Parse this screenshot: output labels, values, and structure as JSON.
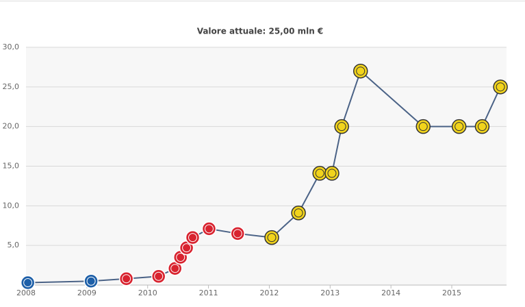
{
  "chart_data": {
    "type": "line",
    "title": "Valore attuale: 25,00 mln €",
    "x": [
      2008.03,
      2009.07,
      2009.65,
      2010.18,
      2010.45,
      2010.54,
      2010.64,
      2010.74,
      2011.01,
      2011.48,
      2012.04,
      2012.48,
      2012.83,
      2013.03,
      2013.19,
      2013.5,
      2014.53,
      2015.12,
      2015.5,
      2015.8
    ],
    "series": [
      {
        "color": "#4a6286",
        "values": [
          0.3,
          0.5,
          0.8,
          1.1,
          2.1,
          3.5,
          4.7,
          6.0,
          7.1,
          6.5,
          6.0,
          9.1,
          14.1,
          14.1,
          20.0,
          27.0,
          20.0,
          20.0,
          20.0,
          25.0
        ],
        "marker_colors": [
          "#1d5fa8",
          "#1d5fa8",
          "#d8232f",
          "#d8232f",
          "#d8232f",
          "#d8232f",
          "#d8232f",
          "#d8232f",
          "#d8232f",
          "#d8232f",
          "#f2d41c",
          "#f2d41c",
          "#f2d41c",
          "#f2d41c",
          "#f2d41c",
          "#f2d41c",
          "#f2d41c",
          "#f2d41c",
          "#f2d41c",
          "#f2d41c"
        ]
      }
    ],
    "xlim": [
      2008,
      2015.9
    ],
    "xticks": [
      2008,
      2009,
      2010,
      2011,
      2012,
      2013,
      2014,
      2015
    ],
    "ylim": [
      0,
      30
    ],
    "yticks": [
      {
        "value": 5,
        "label": "5,0"
      },
      {
        "value": 10,
        "label": "10,0"
      },
      {
        "value": 15,
        "label": "15,0"
      },
      {
        "value": 20,
        "label": "20,0"
      },
      {
        "value": 25,
        "label": "25,0"
      },
      {
        "value": 30,
        "label": "30,0"
      }
    ],
    "grid": true
  }
}
